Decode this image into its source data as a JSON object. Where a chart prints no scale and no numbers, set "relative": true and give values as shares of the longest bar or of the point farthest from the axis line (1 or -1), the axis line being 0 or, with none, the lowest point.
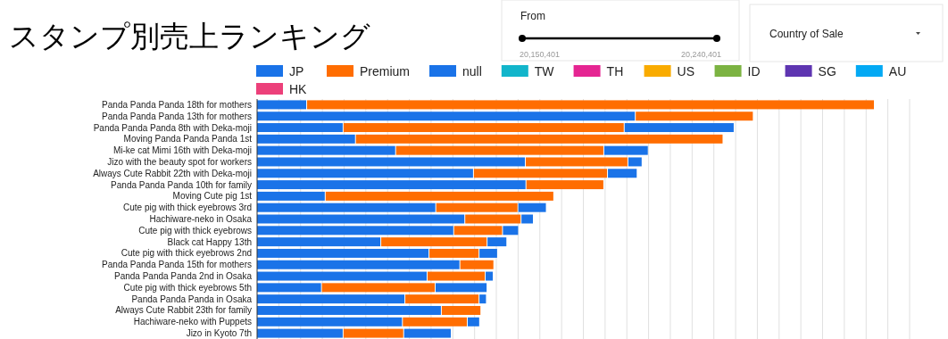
{
  "chart_data": {
    "type": "bar",
    "orientation": "horizontal",
    "stacked": true,
    "relative": true,
    "grid": "x",
    "legend": "top",
    "title": "スタンプ別売上ランキング",
    "annotations": [
      "From",
      "20,150,401",
      "20,240,401",
      "Country of Sale"
    ],
    "categories": [
      "Panda Panda Panda 18th for mothers",
      "Panda Panda Panda 13th for mothers",
      "Panda Panda Panda 8th with Deka-moji",
      "Moving Panda Panda Panda 1st",
      "Mi-ke cat Mimi 16th with Deka-moji",
      "Jizo with the beauty spot for workers",
      "Always Cute Rabbit 22th with Deka-moji",
      "Panda Panda Panda 10th for family",
      "Moving Cute pig 1st",
      "Cute pig with thick eyebrows 3rd",
      "Hachiware-neko in Osaka",
      "Cute pig with thick eyebrows",
      "Black cat Happy 13th",
      "Cute pig with thick eyebrows 2nd",
      "Panda Panda Panda 15th for mothers",
      "Panda Panda Panda 2nd in Osaka",
      "Cute pig with thick eyebrows 5th",
      "Panda Panda Panda in Osaka",
      "Always Cute Rabbit 23th for family",
      "Hachiware-neko with Puppets",
      "Jizo in Kyoto 7th"
    ],
    "series": [
      {
        "name": "JP",
        "color": "#1a73e8",
        "values": [
          0.081,
          0.613,
          0.14,
          0.16,
          0.225,
          0.435,
          0.351,
          0.436,
          0.111,
          0.29,
          0.337,
          0.319,
          0.201,
          0.279,
          0.329,
          0.276,
          0.105,
          0.24,
          0.299,
          0.236,
          0.14
        ]
      },
      {
        "name": "Premium",
        "color": "#ff6d01",
        "values": [
          0.919,
          0.191,
          0.455,
          0.595,
          0.337,
          0.166,
          0.217,
          0.126,
          0.37,
          0.133,
          0.091,
          0.079,
          0.172,
          0.081,
          0.055,
          0.094,
          0.184,
          0.12,
          0.064,
          0.105,
          0.098
        ]
      },
      {
        "name": "null",
        "color": "#1a73e8",
        "values": [
          null,
          null,
          0.178,
          null,
          0.072,
          0.023,
          0.048,
          null,
          null,
          0.046,
          0.02,
          0.026,
          0.032,
          0.03,
          null,
          0.013,
          0.084,
          0.012,
          null,
          0.02,
          0.077
        ]
      },
      {
        "name": "TW",
        "color": "#12b5cb",
        "values": [
          null,
          null,
          null,
          null,
          null,
          null,
          null,
          null,
          null,
          null,
          null,
          null,
          null,
          null,
          null,
          null,
          null,
          null,
          null,
          null,
          null
        ]
      },
      {
        "name": "TH",
        "color": "#e52592",
        "values": [
          null,
          null,
          null,
          null,
          null,
          null,
          null,
          null,
          null,
          null,
          null,
          null,
          null,
          null,
          null,
          null,
          null,
          null,
          null,
          null,
          null
        ]
      },
      {
        "name": "US",
        "color": "#f9ab00",
        "values": [
          null,
          null,
          null,
          null,
          null,
          null,
          null,
          null,
          null,
          null,
          null,
          null,
          null,
          null,
          null,
          null,
          null,
          null,
          null,
          null,
          null
        ]
      },
      {
        "name": "ID",
        "color": "#7cb342",
        "values": [
          null,
          null,
          null,
          null,
          null,
          null,
          null,
          null,
          null,
          null,
          null,
          null,
          null,
          null,
          null,
          null,
          null,
          null,
          null,
          null,
          null
        ]
      },
      {
        "name": "SG",
        "color": "#5e35b1",
        "values": [
          null,
          null,
          null,
          null,
          null,
          null,
          null,
          null,
          null,
          null,
          null,
          null,
          null,
          null,
          null,
          null,
          null,
          null,
          null,
          null,
          null
        ]
      },
      {
        "name": "AU",
        "color": "#03a9f4",
        "values": [
          null,
          null,
          null,
          null,
          null,
          null,
          null,
          null,
          null,
          null,
          null,
          null,
          null,
          null,
          null,
          null,
          null,
          null,
          null,
          null,
          null
        ]
      },
      {
        "name": "HK",
        "color": "#ec407a",
        "values": [
          null,
          null,
          null,
          null,
          null,
          null,
          null,
          null,
          null,
          null,
          null,
          null,
          null,
          null,
          null,
          null,
          null,
          null,
          null,
          null,
          null
        ]
      }
    ]
  }
}
